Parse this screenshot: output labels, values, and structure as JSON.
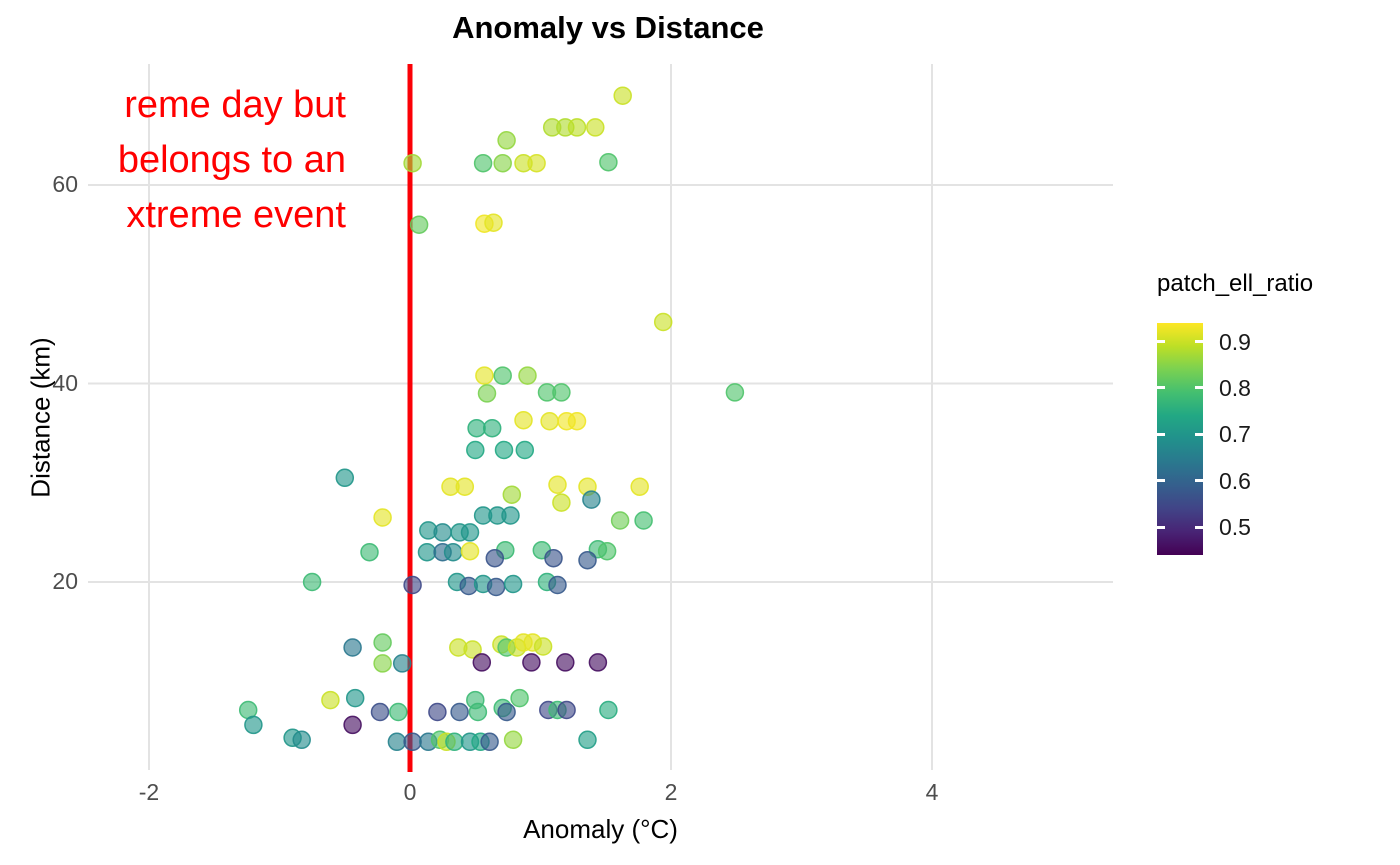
{
  "title": "Anomaly vs Distance",
  "annotation": {
    "color": "#ff0000",
    "lines": [
      "reme day but",
      "belongs to an",
      "xtreme event"
    ]
  },
  "vline": {
    "x": 0,
    "color": "#fb0006"
  },
  "axes": {
    "x": {
      "label": "Anomaly (°C)",
      "ticks": [
        "-2",
        "0",
        "2",
        "4"
      ],
      "tick_values": [
        -2,
        0,
        2,
        4
      ]
    },
    "y": {
      "label": "Distance (km)",
      "ticks": [
        "20",
        "40",
        "60"
      ],
      "tick_values": [
        20,
        40,
        60
      ]
    }
  },
  "legend": {
    "title": "patch_ell_ratio",
    "tick_labels": [
      "0.9",
      "0.8",
      "0.7",
      "0.6",
      "0.5"
    ],
    "tick_values": [
      0.9,
      0.8,
      0.7,
      0.6,
      0.5
    ]
  },
  "chart_data": {
    "type": "scatter",
    "title": "Anomaly vs Distance",
    "xlabel": "Anomaly (°C)",
    "ylabel": "Distance (km)",
    "xlim": [
      -2.47,
      5.39
    ],
    "ylim": [
      1.0,
      72.2
    ],
    "grid": "major-only",
    "legend_position": "right",
    "color_scale": {
      "variable": "patch_ell_ratio",
      "palette": "viridis",
      "domain": [
        0.44,
        0.94
      ]
    },
    "reference_line": {
      "orientation": "vertical",
      "x": 0,
      "color": "#fb0006"
    },
    "point_style": {
      "radius_px": 8.5,
      "fill_opacity": 0.62,
      "stroke_opacity": 0.9
    },
    "points": [
      [
        1.63,
        69.0,
        0.9
      ],
      [
        1.09,
        65.8,
        0.88
      ],
      [
        1.19,
        65.8,
        0.88
      ],
      [
        1.28,
        65.8,
        0.89
      ],
      [
        1.42,
        65.8,
        0.9
      ],
      [
        0.74,
        64.5,
        0.86
      ],
      [
        0.02,
        62.2,
        0.87
      ],
      [
        0.56,
        62.2,
        0.8
      ],
      [
        0.71,
        62.2,
        0.85
      ],
      [
        0.87,
        62.2,
        0.9
      ],
      [
        0.97,
        62.2,
        0.91
      ],
      [
        1.52,
        62.3,
        0.8
      ],
      [
        0.07,
        56.0,
        0.82
      ],
      [
        0.57,
        56.1,
        0.93
      ],
      [
        0.64,
        56.2,
        0.92
      ],
      [
        1.94,
        46.2,
        0.9
      ],
      [
        0.57,
        40.8,
        0.92
      ],
      [
        0.71,
        40.8,
        0.8
      ],
      [
        0.9,
        40.8,
        0.86
      ],
      [
        0.59,
        39.0,
        0.84
      ],
      [
        1.05,
        39.1,
        0.8
      ],
      [
        1.16,
        39.1,
        0.8
      ],
      [
        2.49,
        39.1,
        0.8
      ],
      [
        0.87,
        36.3,
        0.92
      ],
      [
        1.07,
        36.2,
        0.92
      ],
      [
        1.2,
        36.2,
        0.93
      ],
      [
        1.28,
        36.2,
        0.93
      ],
      [
        0.51,
        35.5,
        0.76
      ],
      [
        0.63,
        35.5,
        0.76
      ],
      [
        0.5,
        33.3,
        0.74
      ],
      [
        0.72,
        33.3,
        0.74
      ],
      [
        0.88,
        33.3,
        0.74
      ],
      [
        -0.5,
        30.5,
        0.7
      ],
      [
        0.31,
        29.6,
        0.92
      ],
      [
        0.42,
        29.6,
        0.92
      ],
      [
        1.13,
        29.8,
        0.92
      ],
      [
        1.36,
        29.6,
        0.92
      ],
      [
        1.76,
        29.6,
        0.92
      ],
      [
        1.16,
        28.0,
        0.9
      ],
      [
        1.39,
        28.3,
        0.66
      ],
      [
        0.78,
        28.8,
        0.87
      ],
      [
        -0.21,
        26.5,
        0.92
      ],
      [
        0.56,
        26.7,
        0.7
      ],
      [
        0.67,
        26.7,
        0.7
      ],
      [
        0.77,
        26.7,
        0.7
      ],
      [
        1.61,
        26.2,
        0.83
      ],
      [
        1.79,
        26.2,
        0.79
      ],
      [
        0.14,
        25.2,
        0.7
      ],
      [
        0.25,
        25.0,
        0.68
      ],
      [
        0.38,
        25.0,
        0.7
      ],
      [
        0.46,
        25.0,
        0.7
      ],
      [
        -0.31,
        23.0,
        0.78
      ],
      [
        0.13,
        23.0,
        0.7
      ],
      [
        0.25,
        23.0,
        0.62
      ],
      [
        0.33,
        23.0,
        0.68
      ],
      [
        0.46,
        23.1,
        0.92
      ],
      [
        0.73,
        23.2,
        0.78
      ],
      [
        1.01,
        23.2,
        0.78
      ],
      [
        1.44,
        23.3,
        0.78
      ],
      [
        1.51,
        23.1,
        0.8
      ],
      [
        0.65,
        22.4,
        0.57
      ],
      [
        1.1,
        22.4,
        0.57
      ],
      [
        1.36,
        22.2,
        0.58
      ],
      [
        -0.75,
        20.0,
        0.78
      ],
      [
        0.02,
        19.7,
        0.55
      ],
      [
        0.36,
        20.0,
        0.7
      ],
      [
        0.45,
        19.6,
        0.58
      ],
      [
        0.56,
        19.8,
        0.7
      ],
      [
        0.66,
        19.5,
        0.58
      ],
      [
        0.79,
        19.8,
        0.7
      ],
      [
        1.05,
        20.0,
        0.76
      ],
      [
        1.13,
        19.7,
        0.58
      ],
      [
        -0.44,
        13.4,
        0.64
      ],
      [
        -0.21,
        13.9,
        0.82
      ],
      [
        0.37,
        13.4,
        0.9
      ],
      [
        0.48,
        13.2,
        0.9
      ],
      [
        0.7,
        13.7,
        0.9
      ],
      [
        0.74,
        13.4,
        0.8
      ],
      [
        0.82,
        13.4,
        0.9
      ],
      [
        0.87,
        13.9,
        0.92
      ],
      [
        0.94,
        13.9,
        0.92
      ],
      [
        1.02,
        13.5,
        0.9
      ],
      [
        -0.21,
        11.8,
        0.85
      ],
      [
        -0.06,
        11.8,
        0.66
      ],
      [
        0.55,
        11.9,
        0.46
      ],
      [
        0.93,
        11.9,
        0.46
      ],
      [
        1.19,
        11.9,
        0.46
      ],
      [
        1.44,
        11.9,
        0.46
      ],
      [
        -1.24,
        7.1,
        0.78
      ],
      [
        -1.2,
        5.6,
        0.7
      ],
      [
        -0.61,
        8.1,
        0.9
      ],
      [
        -0.42,
        8.3,
        0.7
      ],
      [
        -0.44,
        5.6,
        0.46
      ],
      [
        -0.23,
        6.9,
        0.56
      ],
      [
        -0.09,
        6.9,
        0.78
      ],
      [
        0.21,
        6.9,
        0.55
      ],
      [
        0.38,
        6.9,
        0.58
      ],
      [
        0.5,
        8.1,
        0.78
      ],
      [
        0.52,
        6.9,
        0.78
      ],
      [
        0.71,
        7.3,
        0.78
      ],
      [
        0.74,
        6.9,
        0.58
      ],
      [
        0.84,
        8.3,
        0.8
      ],
      [
        1.06,
        7.1,
        0.55
      ],
      [
        1.13,
        7.1,
        0.78
      ],
      [
        1.2,
        7.1,
        0.55
      ],
      [
        1.52,
        7.1,
        0.75
      ],
      [
        -0.9,
        4.3,
        0.7
      ],
      [
        -0.83,
        4.1,
        0.68
      ],
      [
        -0.1,
        3.9,
        0.66
      ],
      [
        0.02,
        3.9,
        0.58
      ],
      [
        0.14,
        3.9,
        0.64
      ],
      [
        0.23,
        4.1,
        0.8
      ],
      [
        0.28,
        3.9,
        0.9
      ],
      [
        0.34,
        3.9,
        0.76
      ],
      [
        0.46,
        3.9,
        0.7
      ],
      [
        0.54,
        3.9,
        0.74
      ],
      [
        0.61,
        3.9,
        0.58
      ],
      [
        0.79,
        4.1,
        0.86
      ],
      [
        1.36,
        4.1,
        0.72
      ]
    ]
  }
}
